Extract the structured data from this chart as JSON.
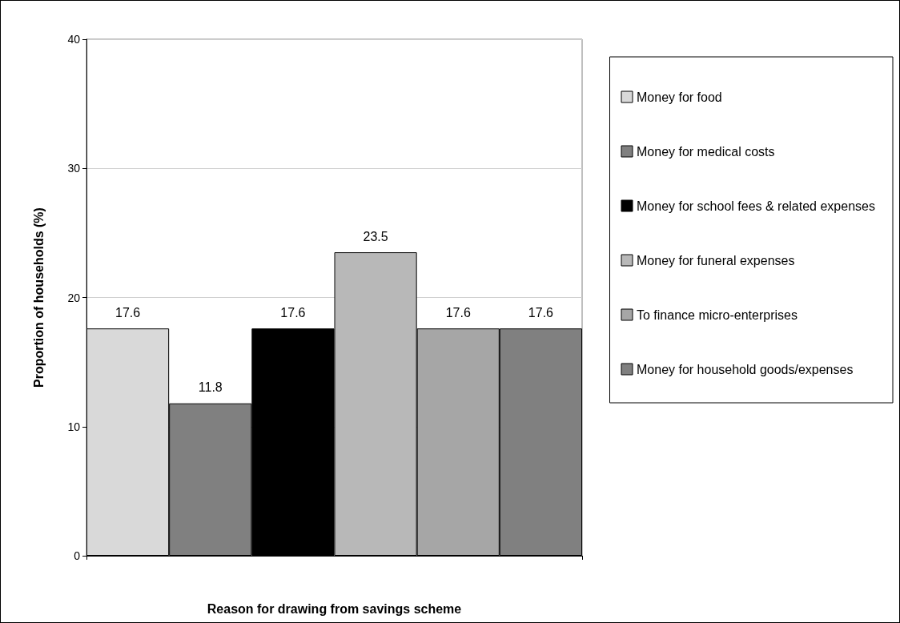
{
  "chart_data": {
    "type": "bar",
    "xlabel": "Reason for drawing from savings scheme",
    "ylabel": "Proportion of households (%)",
    "categories": [
      null
    ],
    "series": [
      {
        "name": "Money for food",
        "color": "#d9d9d9",
        "values": [
          17.6
        ]
      },
      {
        "name": "Money for medical costs",
        "color": "#808080",
        "values": [
          11.8
        ]
      },
      {
        "name": "Money for school fees & related expenses",
        "color": "#000000",
        "values": [
          17.6
        ]
      },
      {
        "name": "Money for funeral expenses",
        "color": "#b8b8b8",
        "values": [
          23.5
        ]
      },
      {
        "name": "To finance micro-enterprises",
        "color": "#a6a6a6",
        "values": [
          17.6
        ]
      },
      {
        "name": "Money for household goods/expenses",
        "color": "#808080",
        "values": [
          17.6
        ]
      }
    ],
    "ylim": [
      0,
      40
    ],
    "yticks": [
      0,
      10,
      20,
      30,
      40
    ],
    "grid": "y",
    "legend": "right",
    "data_labels": true
  }
}
